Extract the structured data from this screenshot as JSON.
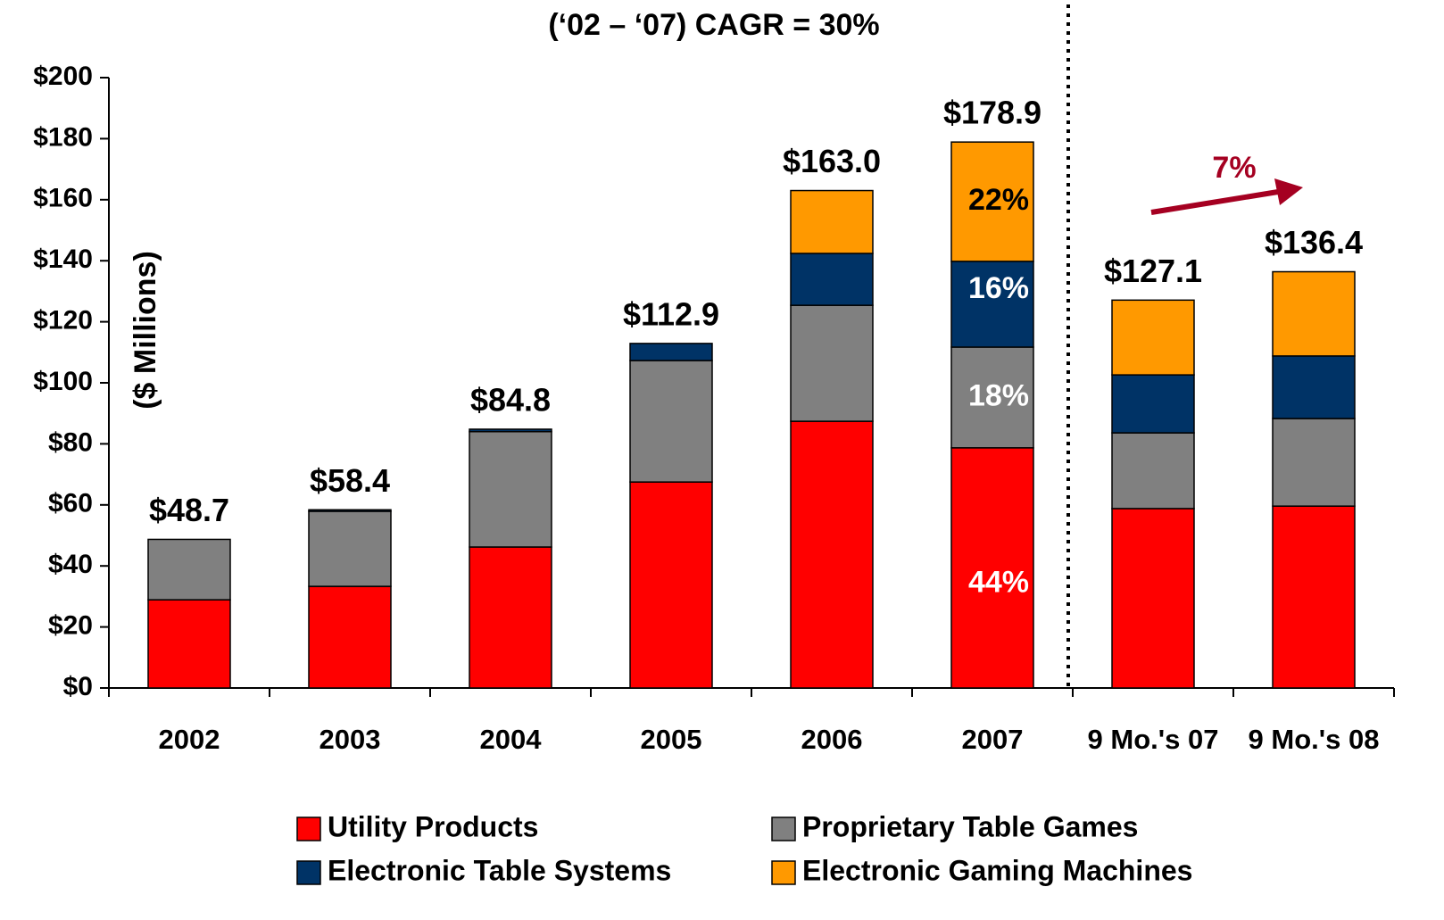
{
  "chart_data": {
    "type": "stacked_bar",
    "title": "(‘02 – ‘07) CAGR = 30%",
    "y_label": "($ Millions)",
    "categories": [
      "2002",
      "2003",
      "2004",
      "2005",
      "2006",
      "2007",
      "9 Mo.'s 07",
      "9 Mo.'s 08"
    ],
    "series": [
      {
        "name": "Utility Products",
        "color": "#ff0000",
        "values": [
          28.9,
          33.3,
          46.2,
          67.5,
          87.4,
          78.7,
          58.8,
          59.6
        ]
      },
      {
        "name": "Proprietary Table Games",
        "color": "#808080",
        "values": [
          19.8,
          24.6,
          37.8,
          39.8,
          38.0,
          33.0,
          24.8,
          28.7
        ]
      },
      {
        "name": "Electronic Table Systems",
        "color": "#003366",
        "values": [
          0,
          0.5,
          0.8,
          5.6,
          17.0,
          28.1,
          19.0,
          20.5
        ]
      },
      {
        "name": "Electronic Gaming Machines",
        "color": "#ff9900",
        "values": [
          0,
          0,
          0,
          0,
          20.6,
          39.1,
          24.5,
          27.6
        ]
      }
    ],
    "totals": [
      48.7,
      58.4,
      84.8,
      112.9,
      163.0,
      178.9,
      127.1,
      136.4
    ],
    "total_labels": [
      "$48.7",
      "$58.4",
      "$84.8",
      "$112.9",
      "$163.0",
      "$178.9",
      "$127.1",
      "$136.4"
    ],
    "segment_labels_2007": [
      "44%",
      "18%",
      "16%",
      "22%"
    ],
    "growth_annotation": "7%",
    "ylim": [
      0,
      200
    ],
    "yticks": [
      {
        "value": 0,
        "label": "$0"
      },
      {
        "value": 20,
        "label": "$20"
      },
      {
        "value": 40,
        "label": "$40"
      },
      {
        "value": 60,
        "label": "$60"
      },
      {
        "value": 80,
        "label": "$80"
      },
      {
        "value": 100,
        "label": "$100"
      },
      {
        "value": 120,
        "label": "$120"
      },
      {
        "value": 140,
        "label": "$140"
      },
      {
        "value": 160,
        "label": "$160"
      },
      {
        "value": 180,
        "label": "$180"
      },
      {
        "value": 200,
        "label": "$200"
      }
    ],
    "grid": false,
    "legend": "bottom"
  }
}
